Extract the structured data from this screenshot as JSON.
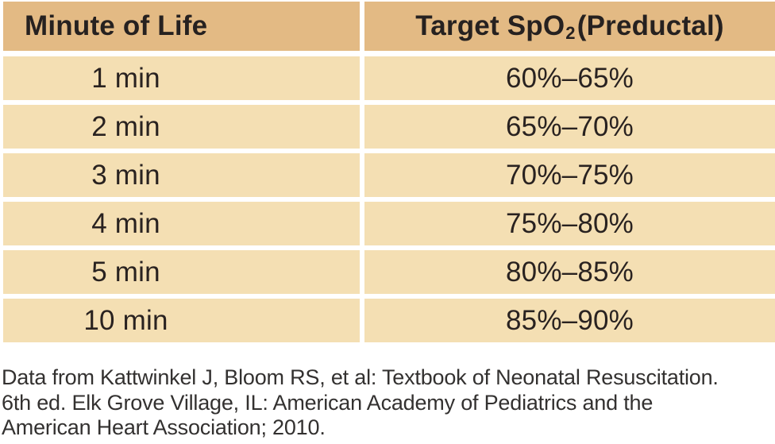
{
  "table": {
    "header": {
      "col1": "Minute of Life",
      "col2_prefix": "Target SpO",
      "col2_subscript": "2",
      "col2_suffix": "(Preductal)"
    },
    "rows": [
      {
        "minute": "1 min",
        "target": "60%–65%"
      },
      {
        "minute": "2 min",
        "target": "65%–70%"
      },
      {
        "minute": "3 min",
        "target": "70%–75%"
      },
      {
        "minute": "4 min",
        "target": "75%–80%"
      },
      {
        "minute": "5 min",
        "target": "80%–85%"
      },
      {
        "minute": "10 min",
        "target": "85%–90%"
      }
    ]
  },
  "citation": {
    "lines": [
      "Data from Kattwinkel J, Bloom RS, et al: Textbook of Neonatal Resuscitation.",
      "6th ed. Elk Grove Village, IL: American Academy of Pediatrics and the",
      "American Heart Association; 2010."
    ]
  },
  "colors": {
    "header_background": "#e3ba84",
    "row_background": "#f4dfb3",
    "table_text": "#292220",
    "citation_text": "#333130",
    "page_background": "#ffffff"
  }
}
